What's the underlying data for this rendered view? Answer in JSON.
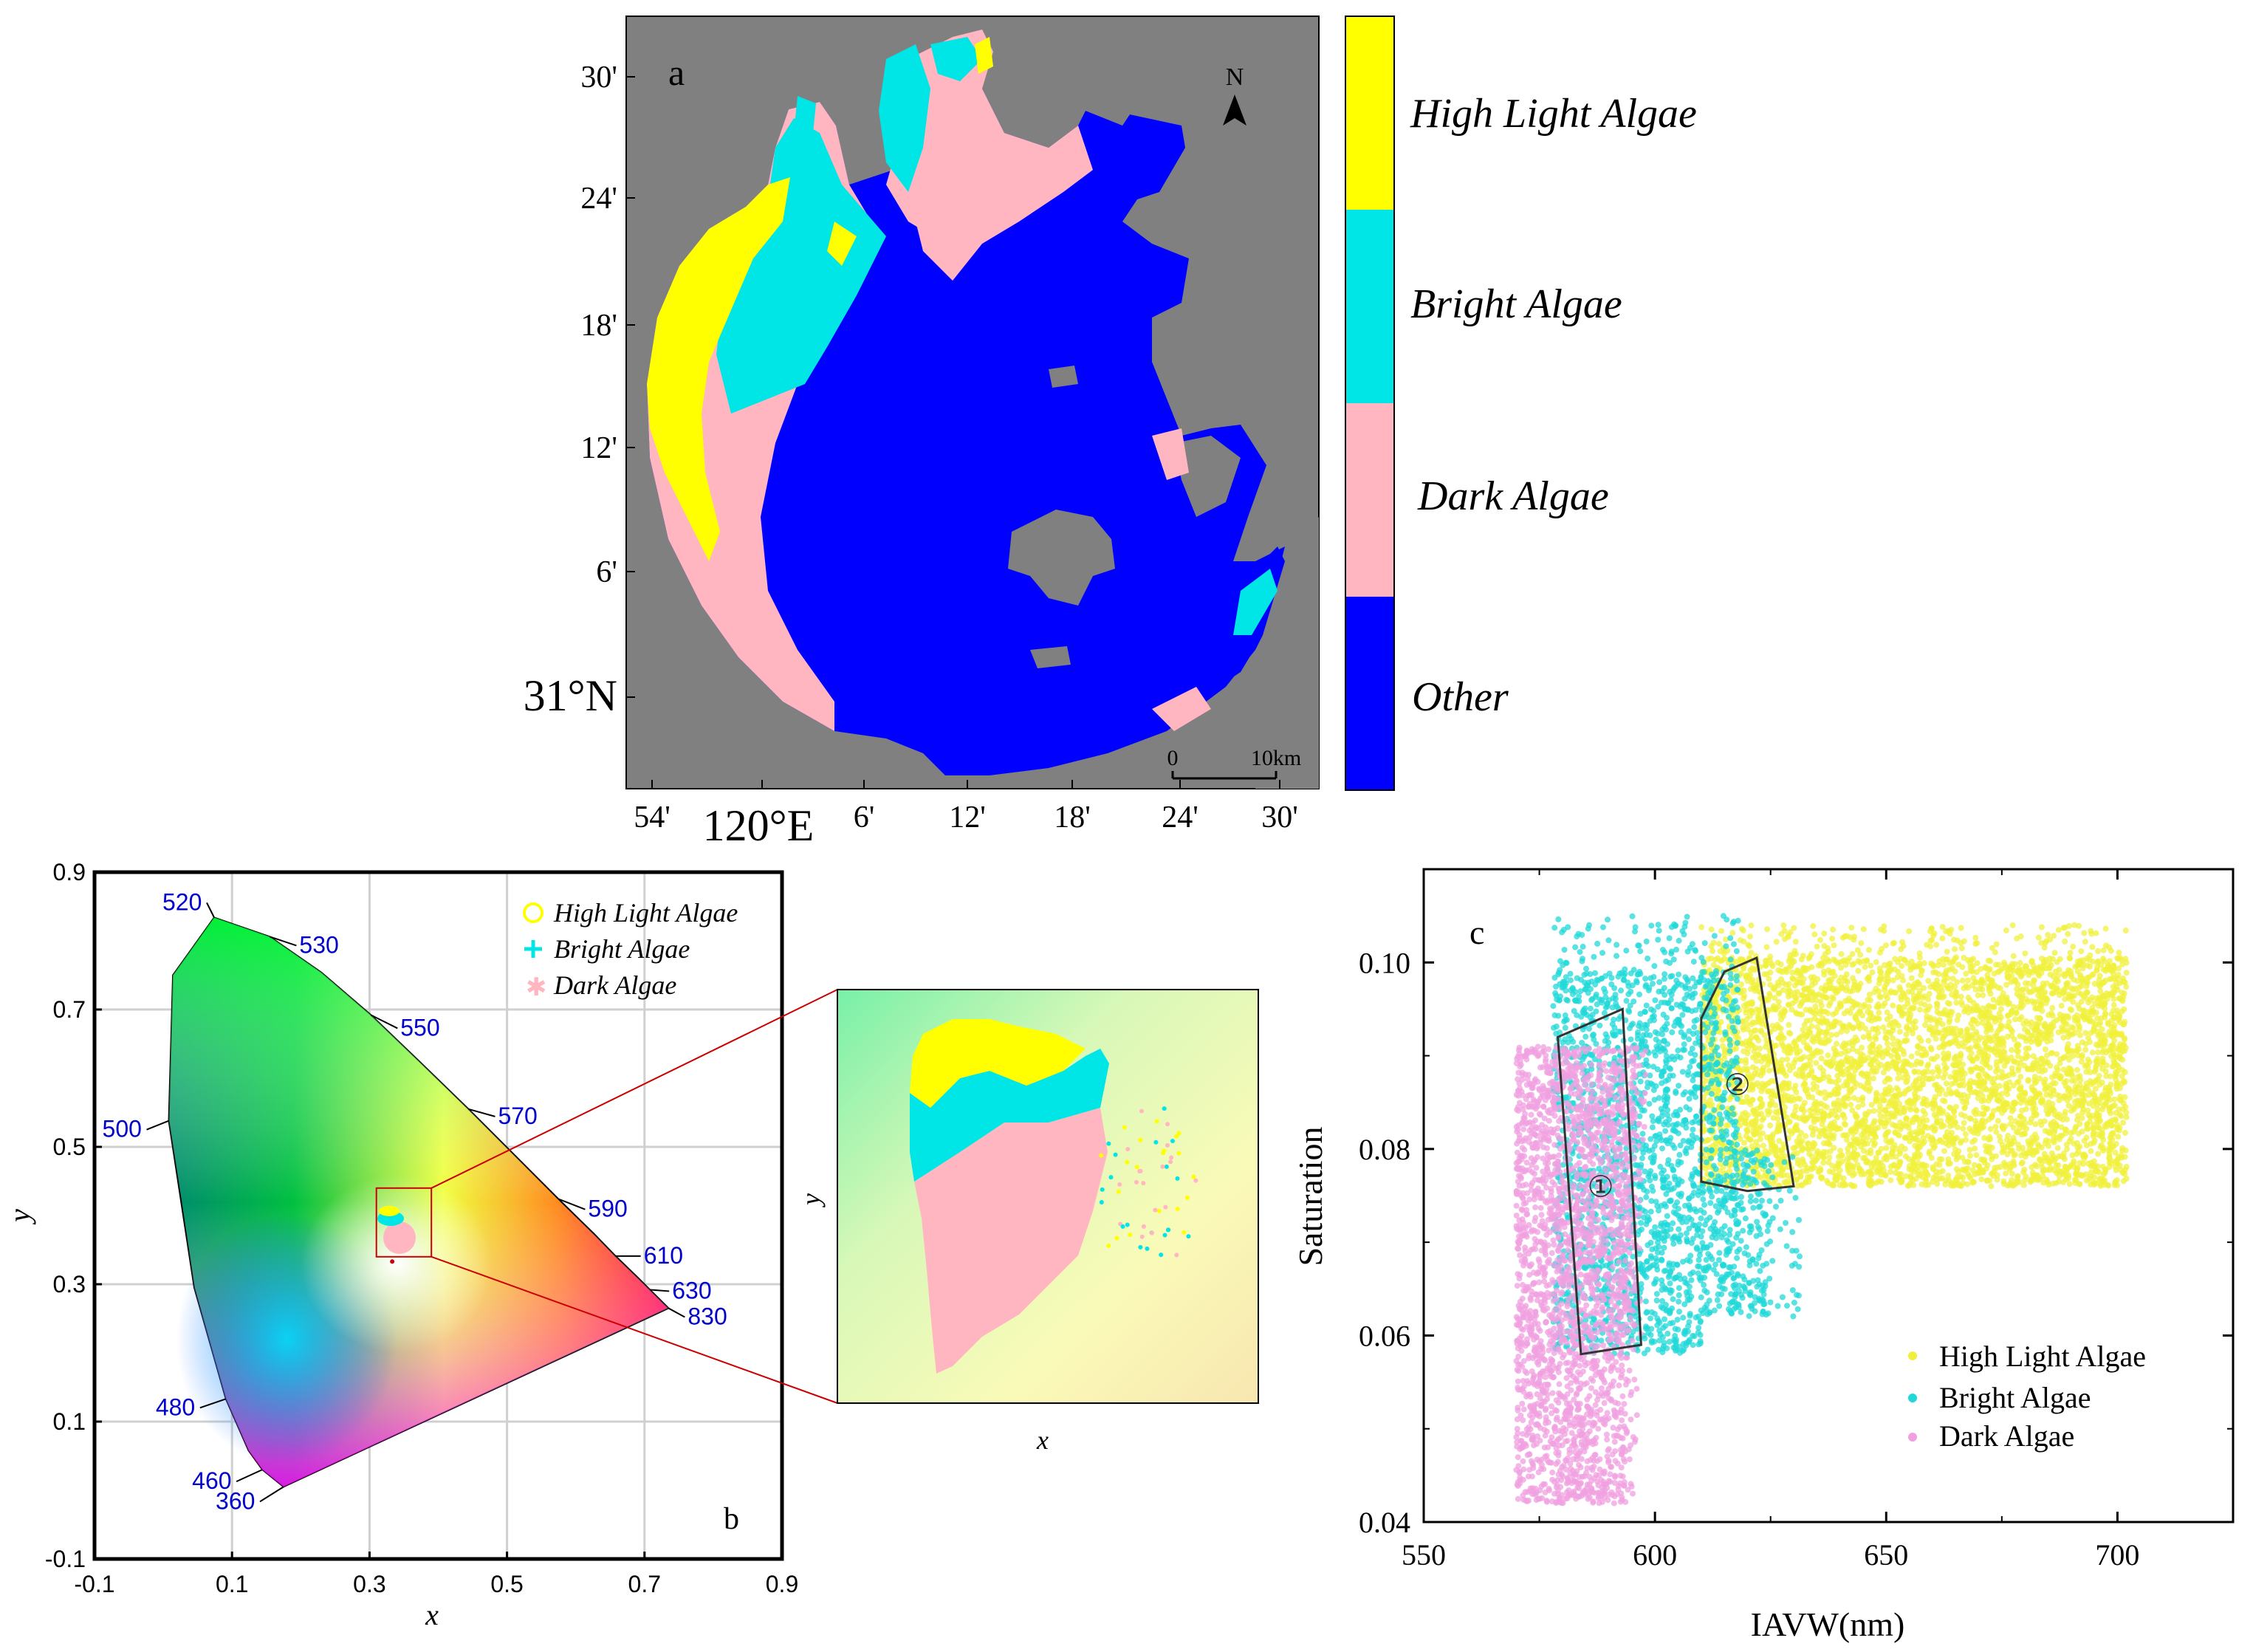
{
  "panel_a": {
    "label": "a",
    "north_label": "N",
    "lat_ticks": [
      "30'",
      "24'",
      "18'",
      "12'",
      "6'",
      "31°N"
    ],
    "lon_ticks": [
      "54'",
      "120°E",
      "6'",
      "12'",
      "18'",
      "24'",
      "30'"
    ],
    "scale_bar": {
      "start": "0",
      "end": "10km"
    },
    "colors": {
      "background": "#808080",
      "other": "#0000ff",
      "dark": "#ffb6c1",
      "bright": "#00e5e5",
      "high": "#ffff00"
    },
    "colorbar": [
      {
        "label": "High Light Algae",
        "color": "#ffff00"
      },
      {
        "label": "Bright Algae",
        "color": "#00e5e5"
      },
      {
        "label": "Dark Algae",
        "color": "#ffb6c1"
      },
      {
        "label": "Other",
        "color": "#0000ff"
      }
    ]
  },
  "chart_data": [
    {
      "type": "scatter",
      "panel": "b",
      "xlabel": "x",
      "ylabel": "y",
      "xlim": [
        -0.1,
        0.9
      ],
      "ylim": [
        -0.1,
        0.9
      ],
      "xticks": [
        "-0.1",
        "0.1",
        "0.3",
        "0.5",
        "0.7",
        "0.9"
      ],
      "yticks": [
        "-0.1",
        "0.1",
        "0.3",
        "0.5",
        "0.7",
        "0.9"
      ],
      "grid": true,
      "legend_position": "top-right",
      "series": [
        {
          "name": "High Light Algae",
          "marker": "circle",
          "color": "#ffff00"
        },
        {
          "name": "Bright Algae",
          "marker": "plus",
          "color": "#00e5e5"
        },
        {
          "name": "Dark Algae",
          "marker": "asterisk",
          "color": "#ffb6c1"
        }
      ],
      "wavelength_labels": [
        {
          "label": "520",
          "x": 0.074,
          "y": 0.834
        },
        {
          "label": "530",
          "x": 0.155,
          "y": 0.806
        },
        {
          "label": "550",
          "x": 0.302,
          "y": 0.692
        },
        {
          "label": "570",
          "x": 0.444,
          "y": 0.555
        },
        {
          "label": "590",
          "x": 0.575,
          "y": 0.424
        },
        {
          "label": "610",
          "x": 0.658,
          "y": 0.341
        },
        {
          "label": "630",
          "x": 0.708,
          "y": 0.292
        },
        {
          "label": "830",
          "x": 0.735,
          "y": 0.265
        },
        {
          "label": "500",
          "x": 0.008,
          "y": 0.538
        },
        {
          "label": "480",
          "x": 0.091,
          "y": 0.133
        },
        {
          "label": "460",
          "x": 0.144,
          "y": 0.03
        },
        {
          "label": "360",
          "x": 0.175,
          "y": 0.005
        }
      ],
      "data_region": {
        "x": [
          0.31,
          0.39
        ],
        "y": [
          0.34,
          0.44
        ]
      },
      "white_point": {
        "x": 0.333,
        "y": 0.333
      },
      "inset": {
        "xlabel": "x",
        "ylabel": "y"
      },
      "colors": {
        "zoom_box": "#cc0000",
        "wavelength_text": "#0000cc"
      }
    },
    {
      "type": "scatter",
      "panel": "c",
      "xlabel": "IAVW(nm)",
      "ylabel": "Saturation",
      "xlim": [
        550,
        725
      ],
      "ylim": [
        0.04,
        0.11
      ],
      "xticks": [
        "550",
        "600",
        "650",
        "700"
      ],
      "yticks": [
        "0.04",
        "0.06",
        "0.08",
        "0.10"
      ],
      "grid": false,
      "legend_position": "bottom-right",
      "series": [
        {
          "name": "High Light Algae",
          "color": "#f0f03c",
          "x_range": [
            610,
            702
          ],
          "y_range": [
            0.076,
            0.104
          ]
        },
        {
          "name": "Bright Algae",
          "color": "#20d8d8",
          "x_range": [
            578,
            632
          ],
          "y_range": [
            0.058,
            0.105
          ]
        },
        {
          "name": "Dark Algae",
          "color": "#f0a0e0",
          "x_range": [
            570,
            598
          ],
          "y_range": [
            0.042,
            0.091
          ]
        }
      ],
      "regions": [
        {
          "label": "①",
          "vertices": [
            [
              579,
              0.092
            ],
            [
              593,
              0.095
            ],
            [
              597,
              0.059
            ],
            [
              584,
              0.058
            ]
          ]
        },
        {
          "label": "②",
          "vertices": [
            [
              610,
              0.094
            ],
            [
              615,
              0.099
            ],
            [
              622,
              0.1005
            ],
            [
              630,
              0.076
            ],
            [
              620,
              0.0755
            ],
            [
              610,
              0.0765
            ]
          ]
        }
      ]
    }
  ]
}
